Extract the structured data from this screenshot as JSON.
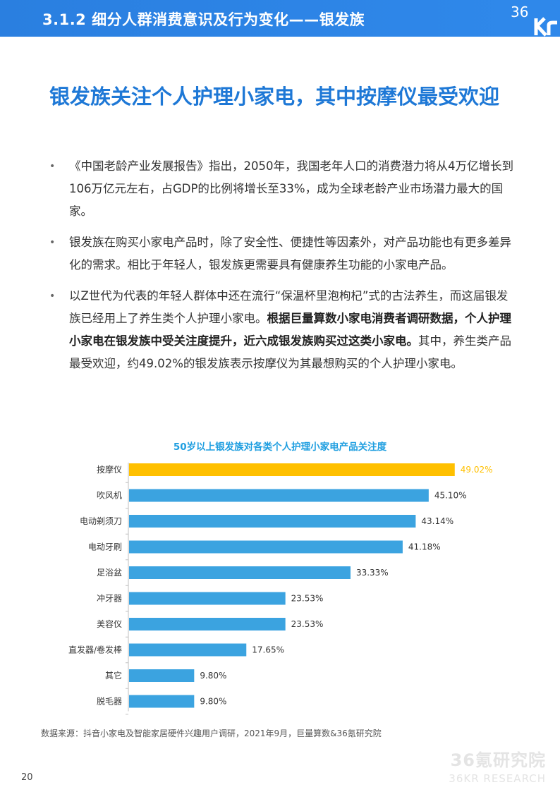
{
  "header": {
    "title": "3.1.2 细分人群消费意识及行为变化——银发族",
    "logo_text": "36Kr"
  },
  "headline": "银发族关注个人护理小家电，其中按摩仪最受欢迎",
  "bullets": [
    {
      "text": "《中国老龄产业发展报告》指出，2050年，我国老年人口的消费潜力将从4万亿增长到106万亿元左右，占GDP的比例将增长至33%，成为全球老龄产业市场潜力最大的国家。"
    },
    {
      "text": "银发族在购买小家电产品时，除了安全性、便捷性等因素外，对产品功能也有更多差异化的需求。相比于年轻人，银发族更需要具有健康养生功能的小家电产品。"
    },
    {
      "pre": "以Z世代为代表的年轻人群体中还在流行“保温杯里泡枸杞”式的古法养生，而这届银发族已经用上了养生类个人护理小家电。",
      "bold": "根据巨量算数小家电消费者调研数据，个人护理小家电在银发族中受关注度提升，近六成银发族购买过这类小家电。",
      "post": "其中，养生类产品最受欢迎，约49.02%的银发族表示按摩仪为其最想购买的个人护理小家电。"
    }
  ],
  "chart_data": {
    "type": "bar",
    "orientation": "horizontal",
    "title": "50岁以上银发族对各类个人护理小家电产品关注度",
    "categories": [
      "按摩仪",
      "吹风机",
      "电动剃须刀",
      "电动牙刷",
      "足浴盆",
      "冲牙器",
      "美容仪",
      "直发器/卷发棒",
      "其它",
      "脱毛器"
    ],
    "values": [
      49.02,
      45.1,
      43.14,
      41.18,
      33.33,
      23.53,
      23.53,
      17.65,
      9.8,
      9.8
    ],
    "labels": [
      "49.02%",
      "45.10%",
      "43.14%",
      "41.18%",
      "33.33%",
      "23.53%",
      "23.53%",
      "17.65%",
      "9.80%",
      "9.80%"
    ],
    "xlim": [
      0,
      100
    ],
    "colors": {
      "highlight": "#FFC000",
      "default": "#3BA3E0",
      "highlight_label": "#FFC000",
      "default_label": "#333333"
    }
  },
  "source": "数据来源：抖音小家电及智能家居硬件兴趣用户调研，2021年9月，巨量算数&36氪研究院",
  "page_number": "20",
  "watermark": {
    "line1": "36氪研究院",
    "line2": "36KR RESEARCH"
  }
}
